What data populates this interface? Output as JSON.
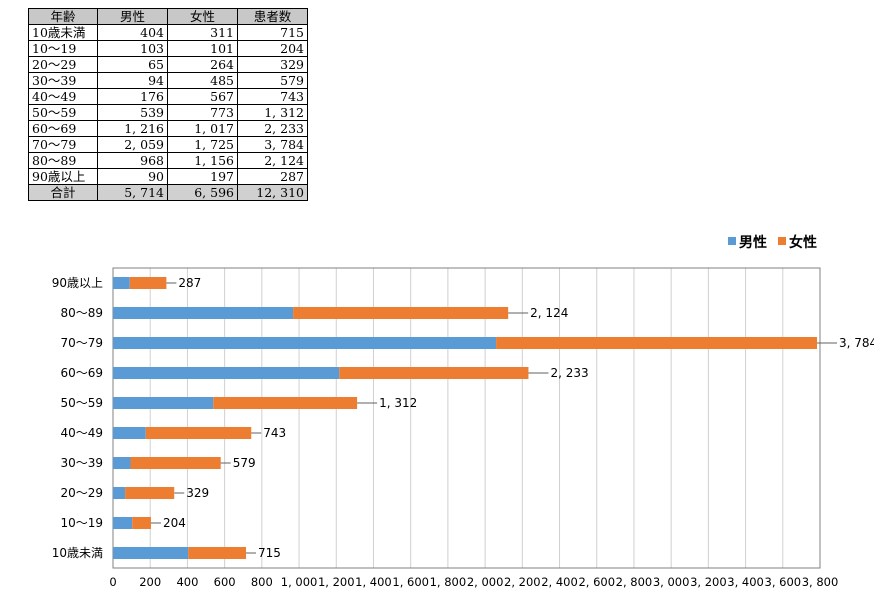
{
  "table": {
    "headers": [
      "年齢",
      "男性",
      "女性",
      "患者数"
    ],
    "rows": [
      [
        "10歳未満",
        "404",
        "311",
        "715"
      ],
      [
        "10～19",
        "103",
        "101",
        "204"
      ],
      [
        "20～29",
        "65",
        "264",
        "329"
      ],
      [
        "30～39",
        "94",
        "485",
        "579"
      ],
      [
        "40～49",
        "176",
        "567",
        "743"
      ],
      [
        "50～59",
        "539",
        "773",
        "1, 312"
      ],
      [
        "60～69",
        "1, 216",
        "1, 017",
        "2, 233"
      ],
      [
        "70～79",
        "2, 059",
        "1, 725",
        "3, 784"
      ],
      [
        "80～89",
        "968",
        "1, 156",
        "2, 124"
      ],
      [
        "90歳以上",
        "90",
        "197",
        "287"
      ]
    ],
    "total": [
      "合計",
      "5, 714",
      "6, 596",
      "12, 310"
    ]
  },
  "chart_data": {
    "type": "bar",
    "orientation": "horizontal",
    "stacked": true,
    "categories": [
      "90歳以上",
      "80～89",
      "70～79",
      "60～69",
      "50～59",
      "40～49",
      "30～39",
      "20～29",
      "10～19",
      "10歳未満"
    ],
    "series": [
      {
        "name": "男性",
        "color": "#5b9bd5",
        "values": [
          90,
          968,
          2059,
          1216,
          539,
          176,
          94,
          65,
          103,
          404
        ]
      },
      {
        "name": "女性",
        "color": "#ed7d31",
        "values": [
          197,
          1156,
          1725,
          1017,
          773,
          567,
          485,
          264,
          101,
          311
        ]
      }
    ],
    "total_labels": [
      "287",
      "2, 124",
      "3, 784",
      "2, 233",
      "1, 312",
      "743",
      "579",
      "329",
      "204",
      "715"
    ],
    "xlim": [
      0,
      3800
    ],
    "x_tick_values": [
      0,
      200,
      400,
      600,
      800,
      1000,
      1200,
      1400,
      1600,
      1800,
      2000,
      2200,
      2400,
      2600,
      2800,
      3000,
      3200,
      3400,
      3600,
      3800
    ],
    "x_tick_labels": [
      "0",
      "200",
      "400",
      "600",
      "800",
      "1, 000",
      "1, 200",
      "1, 400",
      "1, 600",
      "1, 800",
      "2, 000",
      "2, 200",
      "2, 400",
      "2, 600",
      "2, 800",
      "3, 000",
      "3, 200",
      "3, 400",
      "3, 600",
      "3, 800"
    ],
    "grid": "vertical",
    "legend_position": "top-right",
    "colors": {
      "male": "#5b9bd5",
      "female": "#ed7d31",
      "grid": "#d0d0d0",
      "axis": "#808080"
    }
  }
}
